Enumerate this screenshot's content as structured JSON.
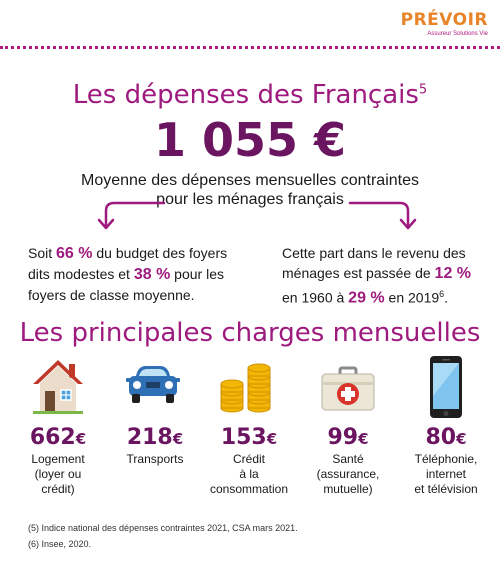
{
  "logo": {
    "name": "PRÉVOIR",
    "tagline": "Assureur Solutions Vie"
  },
  "header": {
    "title": "Les dépenses des Français",
    "title_note": "5",
    "amount": "1 055 €",
    "subtitle_line1": "Moyenne des dépenses mensuelles contraintes",
    "subtitle_line2": "pour les ménages français"
  },
  "stats": {
    "left": {
      "t1": "Soit ",
      "h1": "66 %",
      "t2": " du budget des foyers dits modestes et ",
      "h2": "38 %",
      "t3": " pour les foyers de classe moyenne."
    },
    "right": {
      "t1": "Cette part dans le revenu des ménages est passée de ",
      "h1": "12 %",
      "t2": " en 1960 à ",
      "h2": "29 %",
      "t3": " en 2019",
      "note": "6",
      "t4": "."
    }
  },
  "section_title": "Les principales charges mensuelles",
  "charges": [
    {
      "icon": "house-icon",
      "amount": "662",
      "currency": "€",
      "label_lines": [
        "Logement",
        "(loyer ou",
        "crédit)"
      ]
    },
    {
      "icon": "car-icon",
      "amount": "218",
      "currency": "€",
      "label_lines": [
        "Transports"
      ]
    },
    {
      "icon": "coins-icon",
      "amount": "153",
      "currency": "€",
      "label_lines": [
        "Crédit",
        "à la",
        "consommation"
      ]
    },
    {
      "icon": "first-aid-kit-icon",
      "amount": "99",
      "currency": "€",
      "label_lines": [
        "Santé",
        "(assurance,",
        "mutuelle)"
      ]
    },
    {
      "icon": "smartphone-icon",
      "amount": "80",
      "currency": "€",
      "label_lines": [
        "Téléphonie,",
        "internet",
        "et télévision"
      ]
    }
  ],
  "footnotes": [
    "(5) Indice national des dépenses contraintes 2021, CSA mars 2021.",
    "(6) Insee, 2020."
  ],
  "colors": {
    "accent": "#9e1a7e",
    "dark_accent": "#6b1460",
    "brand_orange": "#e8842a"
  }
}
